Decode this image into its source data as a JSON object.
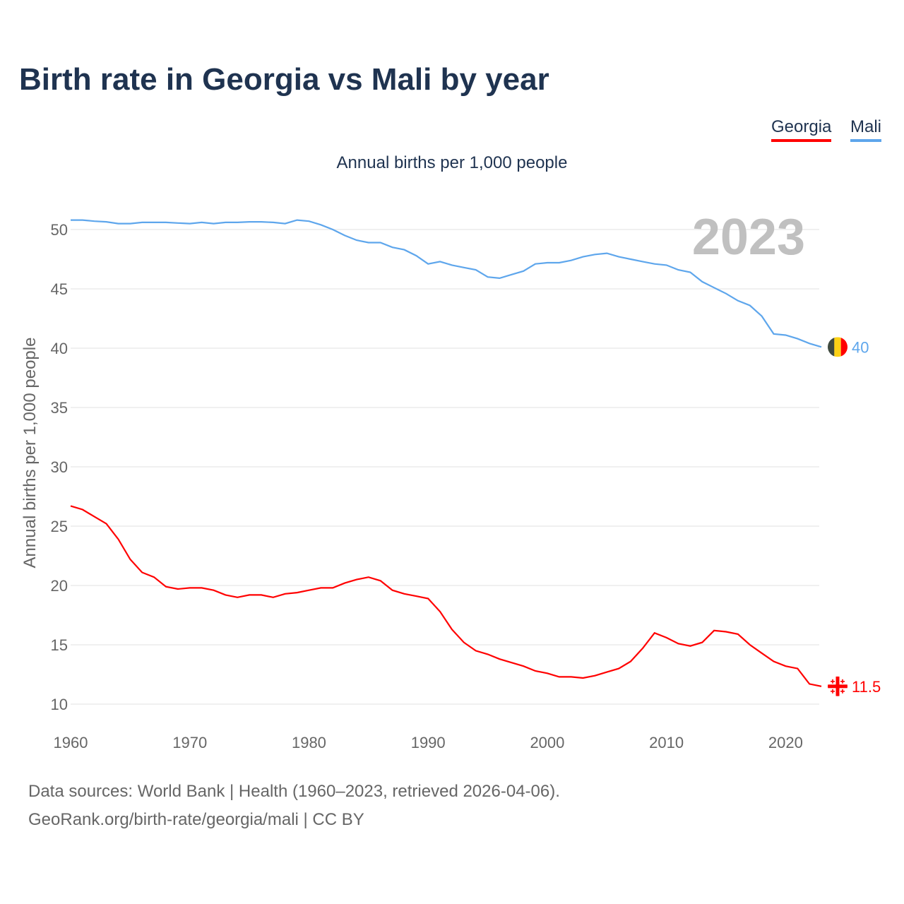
{
  "title": "Birth rate in Georgia vs Mali by year",
  "subtitle": "Annual births per 1,000 people",
  "legend": [
    "Georgia",
    "Mali"
  ],
  "year_watermark": "2023",
  "footer": {
    "line1": "Data sources: World Bank | Health (1960–2023, retrieved 2026-04-06).",
    "line2": "GeoRank.org/birth-rate/georgia/mali | CC BY"
  },
  "chart_data": {
    "type": "line",
    "title": "Birth rate in Georgia vs Mali by year",
    "xlabel": "",
    "ylabel": "Annual births per 1,000 people",
    "xlim": [
      1960,
      2023
    ],
    "ylim": [
      10,
      52
    ],
    "x_ticks": [
      1960,
      1970,
      1980,
      1990,
      2000,
      2010,
      2020
    ],
    "y_ticks": [
      10,
      15,
      20,
      25,
      30,
      35,
      40,
      45,
      50
    ],
    "grid": true,
    "legend_position": "top-right",
    "x_start": 1960,
    "series": [
      {
        "name": "Georgia",
        "color": "#ff0000",
        "end_label": "11.5",
        "values": [
          26.7,
          26.4,
          25.8,
          25.2,
          23.9,
          22.2,
          21.1,
          20.7,
          19.9,
          19.7,
          19.8,
          19.8,
          19.6,
          19.2,
          19.0,
          19.2,
          19.2,
          19.0,
          19.3,
          19.4,
          19.6,
          19.8,
          19.8,
          20.2,
          20.5,
          20.7,
          20.4,
          19.6,
          19.3,
          19.1,
          18.9,
          17.8,
          16.3,
          15.2,
          14.5,
          14.2,
          13.8,
          13.5,
          13.2,
          12.8,
          12.6,
          12.3,
          12.3,
          12.2,
          12.4,
          12.7,
          13.0,
          13.6,
          14.7,
          16.0,
          15.6,
          15.1,
          14.9,
          15.2,
          16.2,
          16.1,
          15.9,
          15.0,
          14.3,
          13.6,
          13.2,
          13.0,
          11.7,
          11.5
        ]
      },
      {
        "name": "Mali",
        "color": "#5ea6ec",
        "end_label": "40",
        "values": [
          50.8,
          50.8,
          50.7,
          50.65,
          50.5,
          50.5,
          50.6,
          50.6,
          50.6,
          50.55,
          50.5,
          50.6,
          50.5,
          50.6,
          50.6,
          50.65,
          50.65,
          50.6,
          50.5,
          50.8,
          50.7,
          50.4,
          50.0,
          49.5,
          49.1,
          48.9,
          48.9,
          48.5,
          48.3,
          47.8,
          47.1,
          47.3,
          47.0,
          46.8,
          46.6,
          46.0,
          45.9,
          46.2,
          46.5,
          47.1,
          47.2,
          47.2,
          47.4,
          47.7,
          47.9,
          48.0,
          47.7,
          47.5,
          47.3,
          47.1,
          47.0,
          46.6,
          46.4,
          45.6,
          45.1,
          44.6,
          44.0,
          43.6,
          42.7,
          41.2,
          41.1,
          40.8,
          40.4,
          40.1
        ]
      }
    ]
  }
}
